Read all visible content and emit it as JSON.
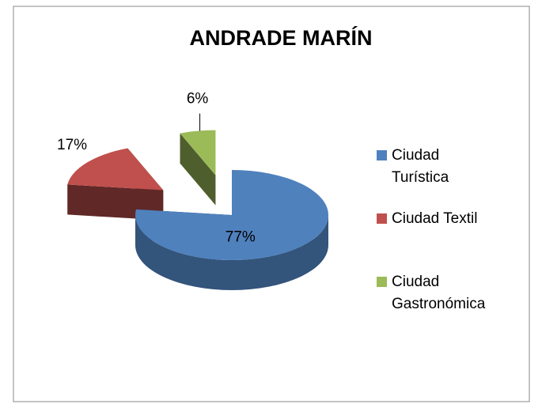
{
  "chart_data": {
    "type": "pie",
    "title": "ANDRADE MARÍN",
    "categories": [
      "Ciudad Turística",
      "Ciudad Textil",
      "Ciudad Gastronómica"
    ],
    "values": [
      77,
      17,
      6
    ],
    "value_labels": [
      "77%",
      "17%",
      "6%"
    ],
    "colors": [
      "#4f81bd",
      "#c0504d",
      "#9bbb59"
    ],
    "legend": "right",
    "exploded": true,
    "three_d": true
  }
}
